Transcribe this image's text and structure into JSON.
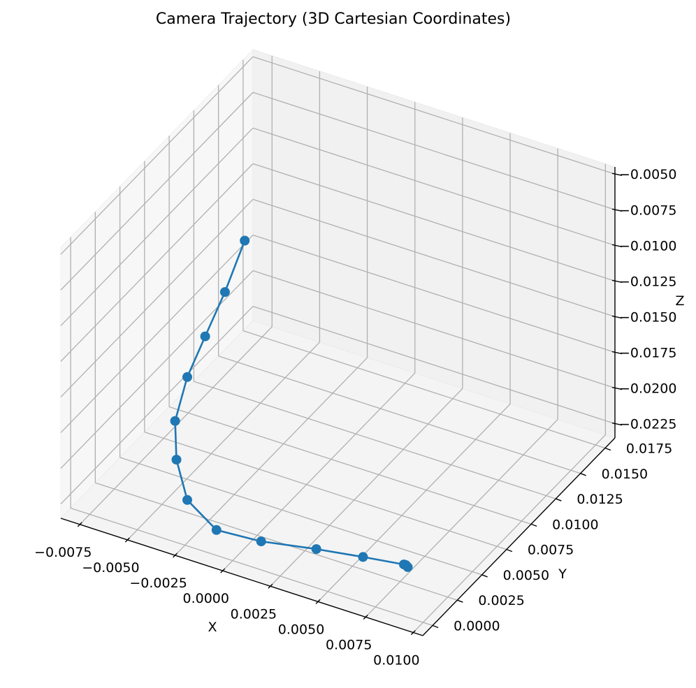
{
  "chart_data": {
    "type": "line",
    "projection": "3d",
    "title": "Camera Trajectory (3D Cartesian Coordinates)",
    "xlabel": "X",
    "ylabel": "Y",
    "zlabel": "Z",
    "xlim": [
      -0.0085,
      0.0105
    ],
    "ylim": [
      -0.001,
      0.0185
    ],
    "zlim": [
      -0.0235,
      -0.0045
    ],
    "xticks": [
      "−0.0075",
      "−0.0050",
      "−0.0025",
      "0.0000",
      "0.0025",
      "0.0050",
      "0.0075",
      "0.0100"
    ],
    "yticks": [
      "0.0000",
      "0.0025",
      "0.0050",
      "0.0075",
      "0.0100",
      "0.0125",
      "0.0150",
      "0.0175"
    ],
    "zticks": [
      "−0.0225",
      "−0.0200",
      "−0.0175",
      "−0.0150",
      "−0.0125",
      "−0.0100",
      "−0.0075",
      "−0.0050"
    ],
    "grid": true,
    "color": "#1f77b4",
    "series": [
      {
        "x": [
          -0.0064,
          -0.0063,
          -0.0062,
          -0.006,
          -0.0055,
          -0.0045,
          -0.003,
          -0.001,
          0.0015,
          0.0045,
          0.007,
          0.0092,
          0.0093,
          0.0094
        ],
        "y": [
          0.0136,
          0.0114,
          0.0092,
          0.007,
          0.0048,
          0.003,
          0.0012,
          0.0003,
          0.0,
          -0.0002,
          -0.0003,
          -0.0004,
          -0.0004,
          -0.0004
        ],
        "z": [
          -0.0135,
          -0.0155,
          -0.017,
          -0.0182,
          -0.0195,
          -0.0205,
          -0.0214,
          -0.022,
          -0.0215,
          -0.0206,
          -0.02,
          -0.0195,
          -0.0195,
          -0.0196
        ]
      }
    ]
  }
}
